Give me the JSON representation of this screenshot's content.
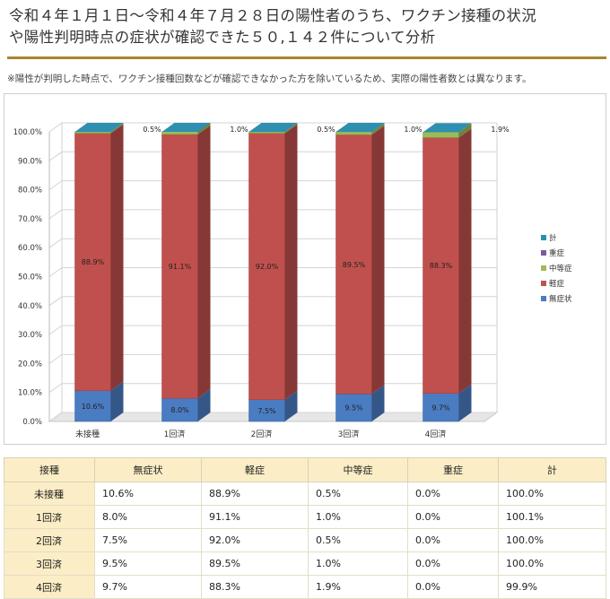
{
  "title_line1": "令和４年１月１日～令和４年７月２８日の陽性者のうち、ワクチン接種の状況",
  "title_line2": "や陽性判明時点の症状が確認できた５０,１４２件について分析",
  "note": "※陽性が判明した時点で、ワクチン接種回数などが確認できなかった方を除いているため、実際の陽性者数とは異なります。",
  "colors": {
    "無症状": "#4a7cc2",
    "軽症": "#c0504d",
    "中等症": "#9bbb59",
    "重症": "#7a5aa0",
    "計": "#2e8fb0",
    "accent_rule": "#a8862f",
    "table_header": "#fbedc5"
  },
  "chart_data": {
    "type": "bar",
    "stacked": true,
    "three_d": true,
    "categories": [
      "未接種",
      "1回済",
      "2回済",
      "3回済",
      "4回済"
    ],
    "series": [
      {
        "name": "無症状",
        "values": [
          10.6,
          8.0,
          7.5,
          9.5,
          9.7
        ]
      },
      {
        "name": "軽症",
        "values": [
          88.9,
          91.1,
          92.0,
          89.5,
          88.3
        ]
      },
      {
        "name": "中等症",
        "values": [
          0.5,
          1.0,
          0.5,
          1.0,
          1.9
        ]
      },
      {
        "name": "重症",
        "values": [
          0.0,
          0.0,
          0.0,
          0.0,
          0.0
        ]
      }
    ],
    "data_labels": {
      "無症状": [
        "10.6%",
        "8.0%",
        "7.5%",
        "9.5%",
        "9.7%"
      ],
      "軽症": [
        "88.9%",
        "91.1%",
        "92.0%",
        "89.5%",
        "88.3%"
      ],
      "中等症": [
        "0.5%",
        "1.0%",
        "0.5%",
        "1.0%",
        "1.9%"
      ]
    },
    "legend": [
      "計",
      "重症",
      "中等症",
      "軽症",
      "無症状"
    ],
    "legend_position": "right",
    "yticks": [
      "0.0%",
      "10.0%",
      "20.0%",
      "30.0%",
      "40.0%",
      "50.0%",
      "60.0%",
      "70.0%",
      "80.0%",
      "90.0%",
      "100.0%"
    ],
    "ylim": [
      0,
      100
    ],
    "grid": true
  },
  "table": {
    "headers": [
      "接種",
      "無症状",
      "軽症",
      "中等症",
      "重症",
      "計"
    ],
    "rows": [
      [
        "未接種",
        "10.6%",
        "88.9%",
        "0.5%",
        "0.0%",
        "100.0%"
      ],
      [
        "1回済",
        "8.0%",
        "91.1%",
        "1.0%",
        "0.0%",
        "100.1%"
      ],
      [
        "2回済",
        "7.5%",
        "92.0%",
        "0.5%",
        "0.0%",
        "100.0%"
      ],
      [
        "3回済",
        "9.5%",
        "89.5%",
        "1.0%",
        "0.0%",
        "100.0%"
      ],
      [
        "4回済",
        "9.7%",
        "88.3%",
        "1.9%",
        "0.0%",
        "99.9%"
      ]
    ]
  }
}
